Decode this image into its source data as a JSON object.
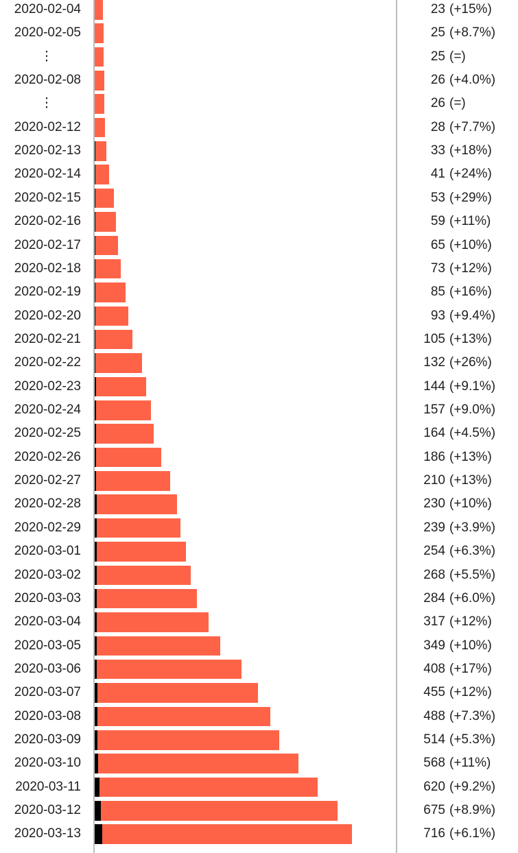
{
  "page": {
    "background_color": "#ffffff",
    "text_color": "#202122"
  },
  "chart_data": {
    "type": "bar",
    "orientation": "horizontal",
    "title": "",
    "xlabel": "",
    "ylabel": "",
    "legend": [],
    "grid": false,
    "value_axis_max": 716,
    "bar_color": "#FF6347",
    "leading_segment_color": "#000000",
    "axis_line_color": "#bdbdbd",
    "gap_symbol": "⋮",
    "rows": [
      {
        "date": "2020-02-04",
        "gap": false,
        "cases": 23,
        "change": "(+15%)",
        "leading_segment_est": 0
      },
      {
        "date": "2020-02-05",
        "gap": false,
        "cases": 25,
        "change": "(+8.7%)",
        "leading_segment_est": 0
      },
      {
        "date": "⋮",
        "gap": true,
        "cases": 25,
        "change": "(=)",
        "leading_segment_est": 0
      },
      {
        "date": "2020-02-08",
        "gap": false,
        "cases": 26,
        "change": "(+4.0%)",
        "leading_segment_est": 0
      },
      {
        "date": "⋮",
        "gap": true,
        "cases": 26,
        "change": "(=)",
        "leading_segment_est": 0
      },
      {
        "date": "2020-02-12",
        "gap": false,
        "cases": 28,
        "change": "(+7.7%)",
        "leading_segment_est": 0
      },
      {
        "date": "2020-02-13",
        "gap": false,
        "cases": 33,
        "change": "(+18%)",
        "leading_segment_est": 1
      },
      {
        "date": "2020-02-14",
        "gap": false,
        "cases": 41,
        "change": "(+24%)",
        "leading_segment_est": 1
      },
      {
        "date": "2020-02-15",
        "gap": false,
        "cases": 53,
        "change": "(+29%)",
        "leading_segment_est": 1
      },
      {
        "date": "2020-02-16",
        "gap": false,
        "cases": 59,
        "change": "(+11%)",
        "leading_segment_est": 1
      },
      {
        "date": "2020-02-17",
        "gap": false,
        "cases": 65,
        "change": "(+10%)",
        "leading_segment_est": 1
      },
      {
        "date": "2020-02-18",
        "gap": false,
        "cases": 73,
        "change": "(+12%)",
        "leading_segment_est": 1
      },
      {
        "date": "2020-02-19",
        "gap": false,
        "cases": 85,
        "change": "(+16%)",
        "leading_segment_est": 2
      },
      {
        "date": "2020-02-20",
        "gap": false,
        "cases": 93,
        "change": "(+9.4%)",
        "leading_segment_est": 2
      },
      {
        "date": "2020-02-21",
        "gap": false,
        "cases": 105,
        "change": "(+13%)",
        "leading_segment_est": 2
      },
      {
        "date": "2020-02-22",
        "gap": false,
        "cases": 132,
        "change": "(+26%)",
        "leading_segment_est": 2
      },
      {
        "date": "2020-02-23",
        "gap": false,
        "cases": 144,
        "change": "(+9.1%)",
        "leading_segment_est": 4
      },
      {
        "date": "2020-02-24",
        "gap": false,
        "cases": 157,
        "change": "(+9.0%)",
        "leading_segment_est": 4
      },
      {
        "date": "2020-02-25",
        "gap": false,
        "cases": 164,
        "change": "(+4.5%)",
        "leading_segment_est": 4
      },
      {
        "date": "2020-02-26",
        "gap": false,
        "cases": 186,
        "change": "(+13%)",
        "leading_segment_est": 4
      },
      {
        "date": "2020-02-27",
        "gap": false,
        "cases": 210,
        "change": "(+13%)",
        "leading_segment_est": 4
      },
      {
        "date": "2020-02-28",
        "gap": false,
        "cases": 230,
        "change": "(+10%)",
        "leading_segment_est": 5
      },
      {
        "date": "2020-02-29",
        "gap": false,
        "cases": 239,
        "change": "(+3.9%)",
        "leading_segment_est": 5
      },
      {
        "date": "2020-03-01",
        "gap": false,
        "cases": 254,
        "change": "(+6.3%)",
        "leading_segment_est": 5
      },
      {
        "date": "2020-03-02",
        "gap": false,
        "cases": 268,
        "change": "(+5.5%)",
        "leading_segment_est": 5
      },
      {
        "date": "2020-03-03",
        "gap": false,
        "cases": 284,
        "change": "(+6.0%)",
        "leading_segment_est": 5
      },
      {
        "date": "2020-03-04",
        "gap": false,
        "cases": 317,
        "change": "(+12%)",
        "leading_segment_est": 6
      },
      {
        "date": "2020-03-05",
        "gap": false,
        "cases": 349,
        "change": "(+10%)",
        "leading_segment_est": 6
      },
      {
        "date": "2020-03-06",
        "gap": false,
        "cases": 408,
        "change": "(+17%)",
        "leading_segment_est": 6
      },
      {
        "date": "2020-03-07",
        "gap": false,
        "cases": 455,
        "change": "(+12%)",
        "leading_segment_est": 7
      },
      {
        "date": "2020-03-08",
        "gap": false,
        "cases": 488,
        "change": "(+7.3%)",
        "leading_segment_est": 7
      },
      {
        "date": "2020-03-09",
        "gap": false,
        "cases": 514,
        "change": "(+5.3%)",
        "leading_segment_est": 7
      },
      {
        "date": "2020-03-10",
        "gap": false,
        "cases": 568,
        "change": "(+11%)",
        "leading_segment_est": 10
      },
      {
        "date": "2020-03-11",
        "gap": false,
        "cases": 620,
        "change": "(+9.2%)",
        "leading_segment_est": 13
      },
      {
        "date": "2020-03-12",
        "gap": false,
        "cases": 675,
        "change": "(+8.9%)",
        "leading_segment_est": 18
      },
      {
        "date": "2020-03-13",
        "gap": false,
        "cases": 716,
        "change": "(+6.1%)",
        "leading_segment_est": 21
      }
    ]
  }
}
